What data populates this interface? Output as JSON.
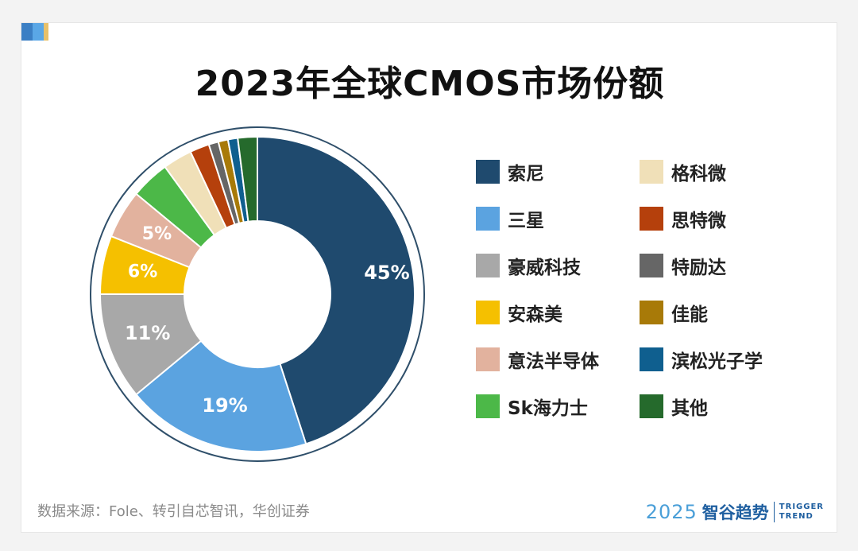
{
  "title": "2023年全球CMOS市场份额",
  "source": "数据来源：Fole、转引自芯智讯，华创证券",
  "brand": {
    "year": "2025",
    "name": "智谷趋势",
    "en_line1": "TRIGGER",
    "en_line2": "TREND"
  },
  "chart_data": {
    "type": "pie",
    "title": "2023年全球CMOS市场份额",
    "donut": true,
    "categories": [
      "索尼",
      "三星",
      "豪威科技",
      "安森美",
      "意法半导体",
      "Sk海力士",
      "格科微",
      "思特微",
      "特励达",
      "佳能",
      "滨松光子学",
      "其他"
    ],
    "values": [
      45,
      19,
      11,
      6,
      5,
      4,
      3,
      2,
      1,
      1,
      1,
      2
    ],
    "value_labels": [
      "45%",
      "19%",
      "11%",
      "6%",
      "5%",
      "",
      "",
      "",
      "",
      "",
      "",
      ""
    ],
    "colors": [
      "#1f4a6e",
      "#5ba3e0",
      "#a8a8a8",
      "#f5c000",
      "#e2b29e",
      "#4cb848",
      "#f0e0b8",
      "#b5400c",
      "#666666",
      "#a87a08",
      "#0f5f8f",
      "#256a2c"
    ],
    "legend_position": "right",
    "legend_columns": 2
  }
}
